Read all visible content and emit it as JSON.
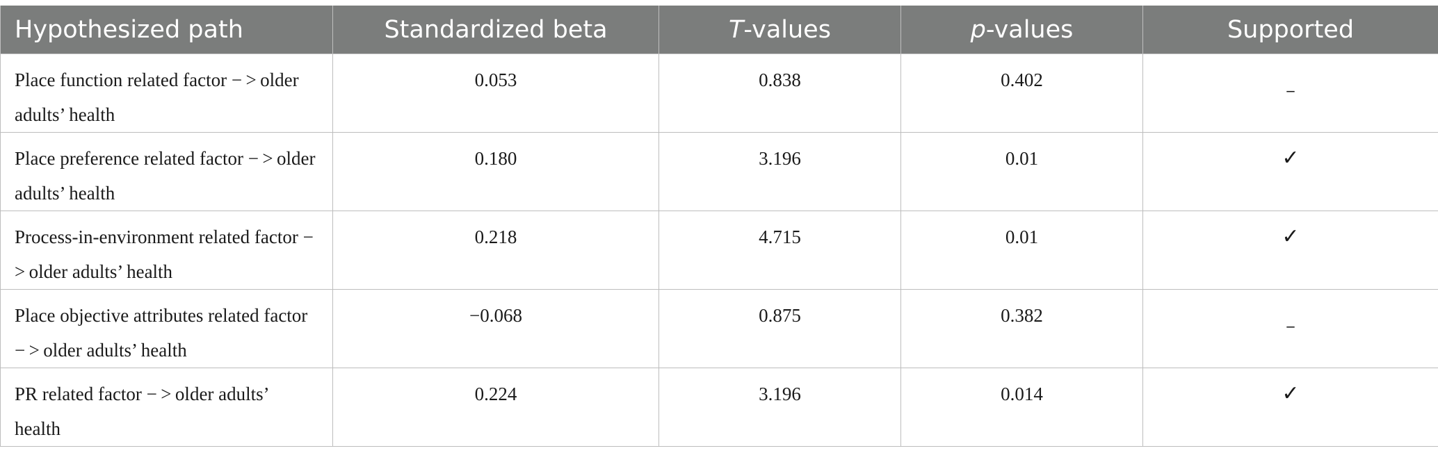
{
  "table": {
    "headers": [
      {
        "text": "Hypothesized path",
        "italic_prefix": ""
      },
      {
        "text": "Standardized beta",
        "italic_prefix": ""
      },
      {
        "text": "-values",
        "italic_prefix": "T"
      },
      {
        "text": "-values",
        "italic_prefix": "p"
      },
      {
        "text": "Supported",
        "italic_prefix": ""
      }
    ],
    "rows": [
      {
        "path": "Place function related factor − > older adults’ health",
        "beta": "0.053",
        "t": "0.838",
        "p": "0.402",
        "supported": "_"
      },
      {
        "path": "Place preference related factor − > older adults’ health",
        "beta": "0.180",
        "t": "3.196",
        "p": "0.01",
        "supported": "✓"
      },
      {
        "path": "Process-in-environment related factor − > older adults’ health",
        "beta": "0.218",
        "t": "4.715",
        "p": "0.01",
        "supported": "✓"
      },
      {
        "path": "Place objective attributes related factor − > older adults’ health",
        "beta": "−0.068",
        "t": "0.875",
        "p": "0.382",
        "supported": "_"
      },
      {
        "path": "PR related factor − > older adults’ health",
        "beta": "0.224",
        "t": "3.196",
        "p": "0.014",
        "supported": "✓"
      }
    ]
  },
  "colors": {
    "header_bg": "#7b7d7c",
    "header_text": "#ffffff",
    "grid": "#bdbdbd"
  }
}
